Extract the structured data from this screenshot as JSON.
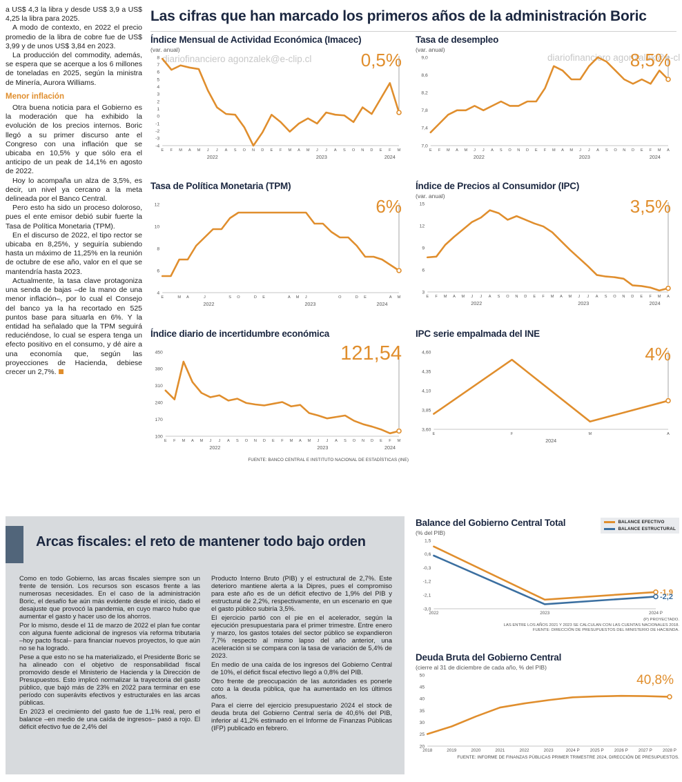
{
  "page": {
    "watermark": "diariofinanciero agonzalek@e-clip.cl"
  },
  "header": {
    "title": "Las cifras que han marcado los primeros años de la administración Boric"
  },
  "left_article": {
    "paragraphs": [
      {
        "type": "p",
        "noindent": true,
        "text": "a US$ 4,3 la libra y desde US$ 3,9 a US$ 4,25 la libra para 2025."
      },
      {
        "type": "p",
        "text": "A modo de contexto, en 2022 el precio promedio de la libra de cobre fue de US$ 3,99 y de unos US$ 3,84 en 2023."
      },
      {
        "type": "p",
        "text": "La producción del commodity, además, se espera que se acerque a los 6 millones de toneladas en 2025, según la ministra de Minería, Aurora Williams."
      },
      {
        "type": "h",
        "text": "Menor inflación"
      },
      {
        "type": "p",
        "text": "Otra buena noticia para el Gobierno es la moderación que ha exhibido la evolución de los precios internos. Boric llegó a su primer discurso ante el Congreso con una inflación que se ubicaba en 10,5% y que sólo era el anticipo de un peak de 14,1% en agosto de 2022."
      },
      {
        "type": "p",
        "text": "Hoy lo acompaña un alza de 3,5%, es decir, un nivel ya cercano a la meta delineada por el Banco Central."
      },
      {
        "type": "p",
        "text": "Pero esto ha sido un proceso doloroso, pues el ente emisor debió subir fuerte la Tasa de Política Monetaria (TPM)."
      },
      {
        "type": "p",
        "text": "En el discurso de 2022, el tipo rector se ubicaba en 8,25%, y seguiría subiendo hasta un máximo de 11,25% en la reunión de octubre de ese año, valor en el que se mantendría hasta 2023."
      },
      {
        "type": "p",
        "end": true,
        "text": "Actualmente, la tasa clave protagoniza una senda de bajas –de la mano de una menor inflación–, por lo cual el Consejo del banco ya la ha recortado en 525 puntos base para situarla en 6%. Y la entidad ha señalado que la TPM seguirá reduciéndose, lo cual se espera tenga un efecto positivo en el consumo, y dé aire a una economía que, según las proyecciones de Hacienda, debiese crecer un 2,7%."
      }
    ]
  },
  "fiscal": {
    "title": "Arcas fiscales: el reto de mantener todo bajo orden",
    "col1": [
      "Como en todo Gobierno, las arcas fiscales siempre son un frente de tensión. Los recursos son escasos frente a las numerosas necesidades. En el caso de la administración Boric, el desafío fue aún más evidente desde el inicio, dado el desajuste que provocó la pandemia, en cuyo marco hubo que aumentar el gasto y hacer uso de los ahorros.",
      "Por lo mismo, desde el 11 de marzo de 2022 el plan fue contar con alguna fuente adicional de ingresos vía reforma tributaria –hoy pacto fiscal– para financiar nuevos proyectos, lo que aún no se ha logrado.",
      "Pese a que esto no se ha materializado, el Presidente Boric se ha alineado con el objetivo de responsabilidad fiscal promovido desde el Ministerio de Hacienda y la Dirección de Presupuestos. Esto implicó normalizar la trayectoria del gasto público, que bajó más de 23% en 2022 para terminar en ese período con superávits efectivos y estructurales en las arcas públicas.",
      "En 2023 el crecimiento del gasto fue de 1,1% real, pero el balance –en medio de una caída de ingresos– pasó a rojo. El déficit efectivo fue de 2,4% del"
    ],
    "col2": [
      "Producto Interno Bruto (PIB) y el estructural de 2,7%. Este deterioro mantiene alerta a la Dipres, pues el compromiso para este año es de un déficit efectivo de 1,9% del PIB y estructural de 2,2%, respectivamente, en un escenario en que el gasto público subiría 3,5%.",
      "El ejercicio partió con el pie en el acelerador, según la ejecución presupuestaria para el primer trimestre. Entre enero y marzo, los gastos totales del sector público se expandieron 7,7% respecto al mismo lapso del año anterior, una aceleración si se compara con la tasa de variación de 5,4% de 2023.",
      "En medio de una caída de los ingresos del Gobierno Central de 10%, el déficit fiscal efectivo llegó a 0,8% del PIB.",
      "Otro frente de preocupación de las autoridades es ponerle coto a la deuda pública, que ha aumentado en los últimos años.",
      "Para el cierre del ejercicio presupuestario 2024 el stock de deuda bruta del Gobierno Central sería de 40,6% del PIB, inferior al 41,2% estimado en el Informe de Finanzas Públicas (IFP) publicado en febrero."
    ]
  },
  "sources": {
    "top": "FUENTE: BANCO CENTRAL E INSTITUTO NACIONAL DE ESTADÍSTICAS (INE)",
    "balance": [
      "(P) PROYECTADO.",
      "LAS ENTRE LOS AÑOS 2021 Y 2023 SE CALCULAN  CON LAS CUENTAS NACIONALES 2018.",
      "FUENTE: DIRECCIÓN DE PRESUPUESTOS DEL MINISTERIO DE HACIENDA."
    ],
    "deuda": "FUENTE: INFORME DE FINANZAS PÚBLICAS PRIMER TRIMESTRE 2024, DIRECCIÓN DE PRESUPUESTOS."
  },
  "chart_data": [
    {
      "type": "line",
      "title": "Índice Mensual de Actividad Económica (Imacec)",
      "subtitle": "(var. anual)",
      "big_label": "0,5%",
      "y_min": -4,
      "y_max": 8,
      "y_tick_values": [
        8,
        7,
        6,
        5,
        4,
        3,
        2,
        1,
        0,
        -1,
        -2,
        -3,
        -4
      ],
      "y_tick_labels": [
        "8",
        "7",
        "6",
        "5",
        "4",
        "3",
        "2",
        "1",
        "0",
        "-1",
        "-2",
        "-3",
        "-4"
      ],
      "x_labels": [
        "E",
        "F",
        "M",
        "A",
        "M",
        "J",
        "J",
        "A",
        "S",
        "O",
        "N",
        "D",
        "E",
        "F",
        "M",
        "A",
        "M",
        "J",
        "J",
        "A",
        "S",
        "O",
        "N",
        "D",
        "E",
        "F",
        "M"
      ],
      "year_labels": [
        {
          "label": "2022",
          "start": 0,
          "end": 11
        },
        {
          "label": "2023",
          "start": 12,
          "end": 23
        },
        {
          "label": "2024",
          "start": 24,
          "end": 26
        }
      ],
      "series": [
        {
          "name": "Imacec",
          "color": "#E08E2D",
          "values": [
            7.8,
            6.3,
            6.9,
            6.6,
            6.4,
            3.5,
            1.2,
            0.3,
            0.2,
            -1.5,
            -4.0,
            -2.2,
            0.2,
            -0.8,
            -2.1,
            -1.0,
            -0.3,
            -1.0,
            0.5,
            0.2,
            0.1,
            -0.8,
            1.2,
            0.3,
            2.4,
            4.5,
            0.5
          ]
        }
      ],
      "connector": true
    },
    {
      "type": "line",
      "title": "Tasa de desempleo",
      "subtitle": "(var. anual)",
      "big_label": "8,5%",
      "y_min": 7.0,
      "y_max": 9.0,
      "y_tick_values": [
        9.0,
        8.6,
        8.2,
        7.8,
        7.4,
        7.0
      ],
      "y_tick_labels": [
        "9,0",
        "8,6",
        "8,2",
        "7,8",
        "7,4",
        "7,0"
      ],
      "x_labels": [
        "E",
        "F",
        "M",
        "A",
        "M",
        "J",
        "J",
        "A",
        "S",
        "O",
        "N",
        "D",
        "E",
        "F",
        "M",
        "A",
        "M",
        "J",
        "J",
        "A",
        "S",
        "O",
        "N",
        "D",
        "E",
        "F",
        "M",
        "A"
      ],
      "year_labels": [
        {
          "label": "2022",
          "start": 0,
          "end": 11
        },
        {
          "label": "2023",
          "start": 12,
          "end": 23
        },
        {
          "label": "2024",
          "start": 24,
          "end": 27
        }
      ],
      "series": [
        {
          "name": "Desempleo",
          "color": "#E08E2D",
          "values": [
            7.3,
            7.5,
            7.7,
            7.8,
            7.8,
            7.9,
            7.8,
            7.9,
            8.0,
            7.9,
            7.9,
            8.0,
            8.0,
            8.3,
            8.8,
            8.7,
            8.5,
            8.5,
            8.8,
            9.0,
            8.9,
            8.7,
            8.5,
            8.4,
            8.5,
            8.4,
            8.7,
            8.5
          ]
        }
      ],
      "connector": true
    },
    {
      "type": "line",
      "title": "Tasa de Política Monetaria (TPM)",
      "subtitle": "",
      "big_label": "6%",
      "y_min": 4,
      "y_max": 12,
      "y_tick_values": [
        12,
        10,
        8,
        6,
        4
      ],
      "y_tick_labels": [
        "12",
        "10",
        "8",
        "6",
        "4"
      ],
      "x_labels": [
        "E",
        "",
        "M",
        "A",
        "",
        "J",
        "",
        "",
        "S",
        "O",
        "",
        "D",
        "E",
        "",
        "",
        "A",
        "M",
        "J",
        "",
        "",
        "",
        "O",
        "",
        "D",
        "E",
        "",
        "",
        "A",
        "M"
      ],
      "year_labels": [
        {
          "label": "2022",
          "start": 0,
          "end": 11
        },
        {
          "label": "2023",
          "start": 12,
          "end": 23
        },
        {
          "label": "2024",
          "start": 24,
          "end": 28
        }
      ],
      "series": [
        {
          "name": "TPM",
          "color": "#E08E2D",
          "values": [
            5.5,
            5.5,
            7.0,
            7.0,
            8.25,
            9.0,
            9.75,
            9.75,
            10.75,
            11.25,
            11.25,
            11.25,
            11.25,
            11.25,
            11.25,
            11.25,
            11.25,
            11.25,
            10.25,
            10.25,
            9.5,
            9.0,
            9.0,
            8.25,
            7.25,
            7.25,
            7.0,
            6.5,
            6.0
          ]
        }
      ],
      "connector": true
    },
    {
      "type": "line",
      "title": "Índice de Precios al Consumidor (IPC)",
      "subtitle": "(var. anual)",
      "big_label": "3,5%",
      "y_min": 3,
      "y_max": 15,
      "y_tick_values": [
        15,
        12,
        9,
        6,
        3
      ],
      "y_tick_labels": [
        "15",
        "12",
        "9",
        "6",
        "3"
      ],
      "x_labels": [
        "E",
        "F",
        "M",
        "A",
        "M",
        "J",
        "J",
        "A",
        "S",
        "O",
        "N",
        "D",
        "E",
        "F",
        "M",
        "A",
        "M",
        "J",
        "J",
        "A",
        "S",
        "O",
        "N",
        "D",
        "E",
        "F",
        "M",
        "A"
      ],
      "year_labels": [
        {
          "label": "2022",
          "start": 0,
          "end": 11
        },
        {
          "label": "2023",
          "start": 12,
          "end": 23
        },
        {
          "label": "2024",
          "start": 24,
          "end": 27
        }
      ],
      "series": [
        {
          "name": "IPC",
          "color": "#E08E2D",
          "values": [
            7.7,
            7.8,
            9.4,
            10.5,
            11.5,
            12.5,
            13.1,
            14.1,
            13.7,
            12.8,
            13.3,
            12.8,
            12.3,
            11.9,
            11.1,
            9.9,
            8.7,
            7.6,
            6.5,
            5.3,
            5.1,
            5.0,
            4.8,
            3.9,
            3.8,
            3.6,
            3.2,
            3.5
          ]
        }
      ],
      "connector": true
    },
    {
      "type": "line",
      "title": "Índice diario de incertidumbre económica",
      "subtitle": "",
      "big_label": "121,54",
      "y_min": 100,
      "y_max": 450,
      "y_tick_values": [
        450,
        380,
        310,
        240,
        170,
        100
      ],
      "y_tick_labels": [
        "450",
        "380",
        "310",
        "240",
        "170",
        "100"
      ],
      "x_labels": [
        "E",
        "F",
        "M",
        "A",
        "M",
        "J",
        "J",
        "A",
        "S",
        "O",
        "N",
        "D",
        "E",
        "F",
        "M",
        "A",
        "M",
        "J",
        "J",
        "A",
        "S",
        "O",
        "N",
        "D",
        "E",
        "F",
        "M"
      ],
      "year_labels": [
        {
          "label": "2022",
          "start": 0,
          "end": 11
        },
        {
          "label": "2023",
          "start": 12,
          "end": 23
        },
        {
          "label": "2024",
          "start": 24,
          "end": 26
        }
      ],
      "series": [
        {
          "name": "Incertidumbre",
          "color": "#E08E2D",
          "values": [
            290,
            253,
            410,
            325,
            280,
            262,
            270,
            248,
            256,
            238,
            232,
            228,
            235,
            242,
            224,
            230,
            196,
            186,
            174,
            180,
            186,
            164,
            150,
            140,
            128,
            112,
            121.54
          ]
        }
      ],
      "connector": true
    },
    {
      "type": "line",
      "title": "IPC serie empalmada del INE",
      "subtitle": "",
      "big_label": "4%",
      "y_min": 3.6,
      "y_max": 4.6,
      "y_tick_values": [
        4.6,
        4.35,
        4.1,
        3.85,
        3.6
      ],
      "y_tick_labels": [
        "4,60",
        "4,35",
        "4,10",
        "3,85",
        "3,60"
      ],
      "x_labels": [
        "E",
        "F",
        "M",
        "A"
      ],
      "year_labels": [
        {
          "label": "2024",
          "start": 0,
          "end": 3
        }
      ],
      "series": [
        {
          "name": "IPC INE",
          "color": "#E08E2D",
          "values": [
            3.8,
            4.5,
            3.7,
            3.97
          ]
        }
      ],
      "connector": true
    },
    {
      "type": "line",
      "title": "Balance del Gobierno Central Total",
      "subtitle": "(% del PIB)",
      "big_label": "",
      "y_min": -3.0,
      "y_max": 1.5,
      "mr": 34,
      "y_tick_values": [
        1.5,
        0.6,
        -0.3,
        -1.2,
        -2.1,
        -3.0
      ],
      "y_tick_labels": [
        "1,5",
        "0,6",
        "-0,3",
        "-1,2",
        "-2,1",
        "-3,0"
      ],
      "x_labels": [
        "2022",
        "2023",
        "2024 P"
      ],
      "series": [
        {
          "name": "BALANCE EFECTIVO",
          "color": "#E08E2D",
          "values": [
            1.1,
            -2.4,
            -1.9
          ],
          "end_label": "-1,9"
        },
        {
          "name": "BALANCE ESTRUCTURAL",
          "color": "#3B6FA0",
          "values": [
            0.5,
            -2.7,
            -2.2
          ],
          "end_label": "-2,2"
        }
      ],
      "connector": false
    },
    {
      "type": "line",
      "title": "Deuda Bruta del Gobierno Central",
      "subtitle": "(cierre al 31 de diciembre de cada año, % del PIB)",
      "big_label": "40,8%",
      "y_min": 20,
      "y_max": 50,
      "y_tick_values": [
        50,
        45,
        40,
        35,
        30,
        25,
        20
      ],
      "y_tick_labels": [
        "50",
        "45",
        "40",
        "35",
        "30",
        "25",
        "20"
      ],
      "x_labels": [
        "2018",
        "2019",
        "2020",
        "2021",
        "2022",
        "2023",
        "2024 P",
        "2025 P",
        "2026 P",
        "2027 P",
        "2028 P"
      ],
      "series": [
        {
          "name": "Deuda bruta",
          "color": "#E08E2D",
          "values": [
            25.1,
            28.3,
            32.5,
            36.3,
            38.0,
            39.4,
            40.6,
            41.0,
            41.2,
            41.1,
            40.8
          ]
        }
      ],
      "connector": false
    }
  ]
}
